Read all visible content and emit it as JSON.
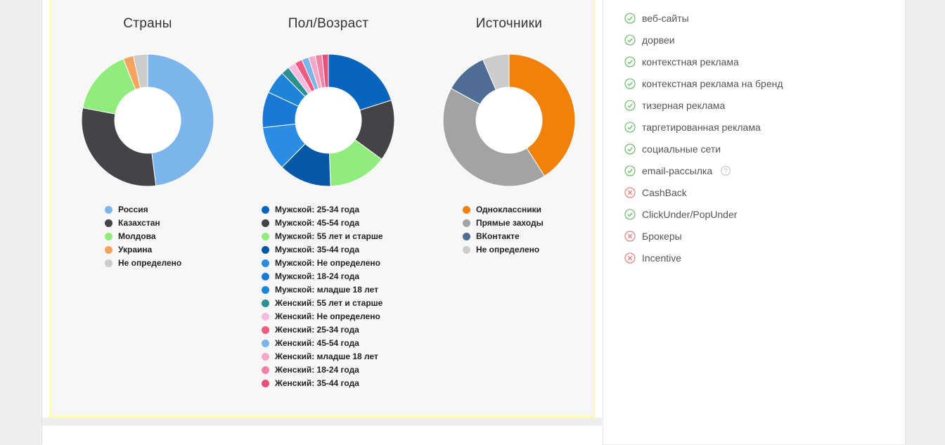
{
  "chart_data": [
    {
      "type": "pie",
      "variant": "donut",
      "title": "Страны",
      "categories": [
        "Россия",
        "Казахстан",
        "Молдова",
        "Украина",
        "Не определено"
      ],
      "values": [
        48,
        30,
        16,
        2.5,
        3.5
      ],
      "colors": [
        "#7cb5ec",
        "#434348",
        "#90ed7d",
        "#f7a35c",
        "#cccccc"
      ]
    },
    {
      "type": "pie",
      "variant": "donut",
      "title": "Пол/Возраст",
      "categories": [
        "Мужской: 25-34 года",
        "Мужской: 45-54 года",
        "Мужской: 55 лет и старше",
        "Мужской: 35-44 года",
        "Мужской: Не определено",
        "Мужской: 18-24 года",
        "Мужской: младше 18 лет",
        "Женский: 55 лет и старше",
        "Женский: Не определено",
        "Женский: 25-34 года",
        "Женский: 45-54 года",
        "Женский: младше 18 лет",
        "Женский: 18-24 года",
        "Женский: 35-44 года"
      ],
      "values": [
        19.5,
        14.5,
        14,
        12.5,
        10.5,
        8.5,
        5.5,
        2,
        1.8,
        1.8,
        1.7,
        1.6,
        1.6,
        1.5
      ],
      "colors": [
        "#0765bd",
        "#434348",
        "#90ed7d",
        "#0757a8",
        "#2b8ce3",
        "#1a79d4",
        "#1e84d8",
        "#2b908f",
        "#f6b9e0",
        "#f15c80",
        "#7cb5ec",
        "#f7a8c8",
        "#f183a6",
        "#e4527a"
      ]
    },
    {
      "type": "pie",
      "variant": "donut",
      "title": "Источники",
      "categories": [
        "Одноклассники",
        "Прямые заходы",
        "ВКонтакте",
        "Не определено"
      ],
      "values": [
        41,
        42,
        10.5,
        6.5
      ],
      "colors": [
        "#f0820c",
        "#a3a3a3",
        "#4f6d94",
        "#cccccc"
      ]
    }
  ],
  "sources": [
    {
      "label": "веб-сайты",
      "status": "allowed",
      "help": false
    },
    {
      "label": "дорвеи",
      "status": "allowed",
      "help": false
    },
    {
      "label": "контекстная реклама",
      "status": "allowed",
      "help": false
    },
    {
      "label": "контекстная реклама на бренд",
      "status": "allowed",
      "help": false
    },
    {
      "label": "тизерная реклама",
      "status": "allowed",
      "help": false
    },
    {
      "label": "таргетированная реклама",
      "status": "allowed",
      "help": false
    },
    {
      "label": "социальные сети",
      "status": "allowed",
      "help": false
    },
    {
      "label": "email-рассылка",
      "status": "allowed",
      "help": true
    },
    {
      "label": "CashBack",
      "status": "denied",
      "help": false
    },
    {
      "label": "ClickUnder/PopUnder",
      "status": "allowed",
      "help": false
    },
    {
      "label": "Брокеры",
      "status": "denied",
      "help": false
    },
    {
      "label": "Incentive",
      "status": "denied",
      "help": false
    }
  ],
  "status_colors": {
    "allowed": "#5cb85c",
    "denied": "#e57373",
    "help": "#bbbbbb"
  }
}
